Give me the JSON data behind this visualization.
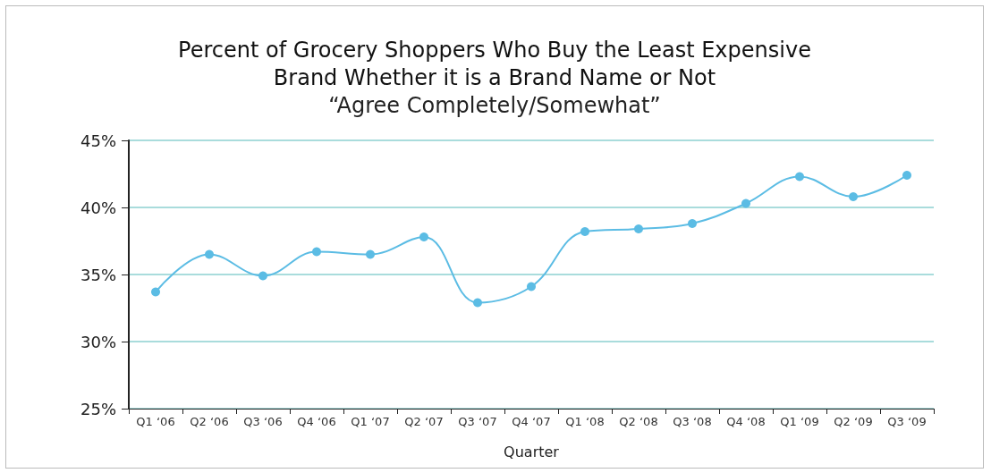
{
  "chart_data": {
    "type": "line",
    "title": "Percent of Grocery Shoppers Who Buy the Least Expensive\nBrand Whether it is a Brand Name or Not",
    "subtitle": "“Agree Completely/Somewhat”",
    "xlabel": "Quarter",
    "categories": [
      "Q1 ‘06",
      "Q2 ‘06",
      "Q3 ‘06",
      "Q4 ‘06",
      "Q1 ‘07",
      "Q2 ‘07",
      "Q3 ‘07",
      "Q4 ‘07",
      "Q1 ‘08",
      "Q2 ‘08",
      "Q3 ‘08",
      "Q4 ‘08",
      "Q1 ‘09",
      "Q2 ‘09",
      "Q3 ‘09"
    ],
    "series": [
      {
        "color": "#5bbce4",
        "values": [
          33.7,
          36.5,
          34.9,
          36.7,
          36.5,
          37.8,
          32.9,
          34.1,
          38.2,
          38.4,
          38.8,
          40.3,
          42.3,
          40.8,
          42.4
        ]
      }
    ],
    "ylim": [
      25,
      45
    ],
    "yticks": [
      {
        "value": 25,
        "label": "25%"
      },
      {
        "value": 30,
        "label": "30%"
      },
      {
        "value": 35,
        "label": "35%"
      },
      {
        "value": 40,
        "label": "40%"
      },
      {
        "value": 45,
        "label": "45%"
      }
    ],
    "grid": "y",
    "marker": "circle",
    "line_style": "solid"
  }
}
